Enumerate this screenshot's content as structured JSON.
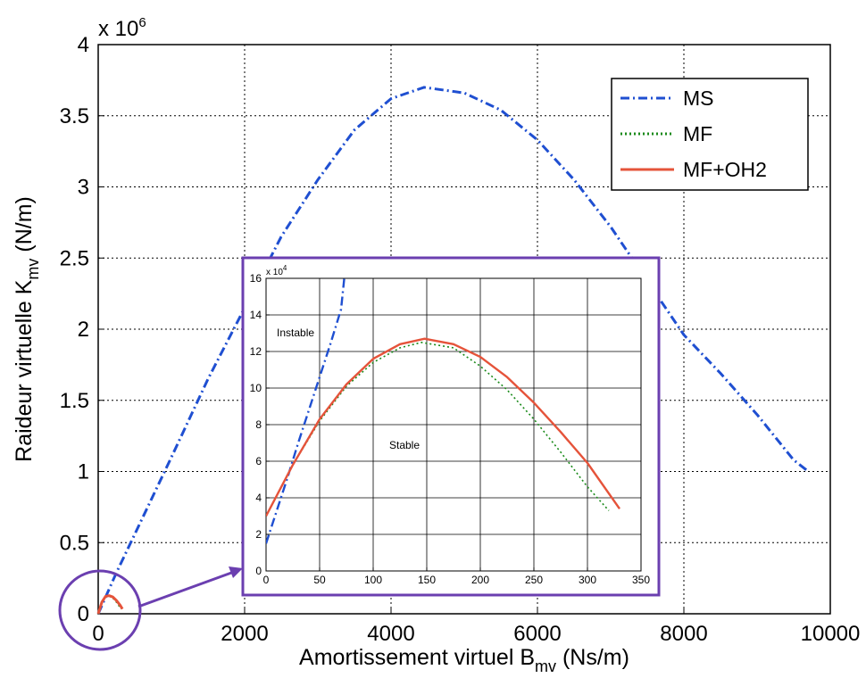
{
  "chart_data": [
    {
      "type": "line",
      "xlabel": "Amortissement virtuel B",
      "xlabel_sub": "mv",
      "xlabel_unit": " (Ns/m)",
      "ylabel": "Raideur virtuelle K",
      "ylabel_sub": "mv",
      "ylabel_unit": " (N/m)",
      "xlim": [
        0,
        10000
      ],
      "ylim": [
        0,
        4000000
      ],
      "xticks": [
        "0",
        "2000",
        "4000",
        "6000",
        "8000",
        "10000"
      ],
      "yticks": [
        "0",
        "0.5",
        "1",
        "1.5",
        "2",
        "2.5",
        "3",
        "3.5",
        "4"
      ],
      "y_multiplier_base": "x 10",
      "y_multiplier_exp": "6",
      "grid": true,
      "legend_position": "top-right",
      "series": [
        {
          "name": "MS",
          "color": "#1f4fd1",
          "style": "dash-dot",
          "x": [
            0,
            250,
            500,
            1000,
            1500,
            2000,
            2500,
            3000,
            3500,
            4000,
            4450,
            5000,
            5500,
            6000,
            6500,
            7000,
            7500,
            8000,
            8500,
            9000,
            9500,
            9700
          ],
          "y": [
            0,
            290000,
            560000,
            1100000,
            1650000,
            2150000,
            2650000,
            3050000,
            3400000,
            3620000,
            3700000,
            3660000,
            3540000,
            3330000,
            3050000,
            2720000,
            2340000,
            1960000,
            1690000,
            1400000,
            1080000,
            1000000
          ]
        },
        {
          "name": "MF",
          "color": "#1a8a1a",
          "style": "dotted",
          "x": [
            0,
            50,
            100,
            150,
            200,
            250,
            300,
            320
          ],
          "y": [
            0,
            80000,
            120000,
            125000,
            112000,
            83000,
            45000,
            35000
          ]
        },
        {
          "name": "MF+OH2",
          "color": "#e5533a",
          "style": "solid",
          "x": [
            0,
            50,
            100,
            150,
            200,
            250,
            300,
            330
          ],
          "y": [
            0,
            82000,
            122000,
            127000,
            118000,
            93000,
            60000,
            34000
          ]
        }
      ]
    },
    {
      "type": "line",
      "inset": true,
      "xlim": [
        0,
        350
      ],
      "ylim": [
        0,
        160000
      ],
      "xticks": [
        "0",
        "50",
        "100",
        "150",
        "200",
        "250",
        "300",
        "350"
      ],
      "yticks": [
        "0",
        "2",
        "4",
        "6",
        "8",
        "10",
        "12",
        "14",
        "16"
      ],
      "y_multiplier_base": "x 10",
      "y_multiplier_exp": "4",
      "grid": true,
      "annotations": [
        "Instable",
        "Stable"
      ],
      "series": [
        {
          "color": "#1f4fd1",
          "style": "dash-dot",
          "x": [
            0,
            10,
            20,
            30,
            40,
            50,
            60,
            70,
            73
          ],
          "y": [
            15000,
            33000,
            51000,
            70000,
            88000,
            106000,
            124000,
            143000,
            160000
          ]
        },
        {
          "color": "#1a8a1a",
          "style": "dotted",
          "x": [
            0,
            25,
            50,
            75,
            100,
            125,
            145,
            175,
            200,
            225,
            250,
            275,
            300,
            320
          ],
          "y": [
            30000,
            58000,
            82000,
            101000,
            114000,
            122000,
            125000,
            122000,
            112000,
            99000,
            83000,
            65000,
            46000,
            33000
          ]
        },
        {
          "color": "#e5533a",
          "style": "solid",
          "x": [
            0,
            25,
            50,
            75,
            100,
            125,
            148,
            175,
            200,
            225,
            250,
            275,
            300,
            330
          ],
          "y": [
            30000,
            58000,
            83000,
            102000,
            116000,
            124000,
            127000,
            124000,
            117000,
            106000,
            92000,
            76000,
            59000,
            34000
          ]
        }
      ]
    }
  ]
}
